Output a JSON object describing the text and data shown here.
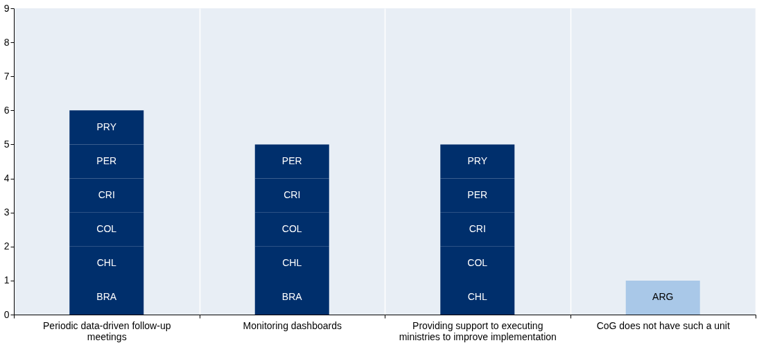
{
  "chart_data": {
    "type": "bar",
    "stacked": true,
    "categories": [
      "Periodic data-driven follow-up meetings",
      "Monitoring dashboards",
      "Providing support to executing ministries to improve implementation",
      "CoG does not have such a unit"
    ],
    "series": [
      {
        "values": [
          1,
          1,
          1,
          1
        ],
        "colors": [
          "#002f6c",
          "#002f6c",
          "#002f6c",
          "#a9c8e8"
        ],
        "value_labels": [
          "BRA",
          "BRA",
          "CHL",
          "ARG"
        ]
      },
      {
        "values": [
          1,
          1,
          1,
          null
        ],
        "color": "#002f6c",
        "value_labels": [
          "CHL",
          "CHL",
          "COL",
          null
        ]
      },
      {
        "values": [
          1,
          1,
          1,
          null
        ],
        "color": "#002f6c",
        "value_labels": [
          "COL",
          "COL",
          "CRI",
          null
        ]
      },
      {
        "values": [
          1,
          1,
          1,
          null
        ],
        "color": "#002f6c",
        "value_labels": [
          "CRI",
          "CRI",
          "PER",
          null
        ]
      },
      {
        "values": [
          1,
          1,
          1,
          null
        ],
        "color": "#002f6c",
        "value_labels": [
          "PER",
          "PER",
          "PRY",
          null
        ]
      },
      {
        "values": [
          1,
          null,
          null,
          null
        ],
        "color": "#002f6c",
        "value_labels": [
          "PRY",
          null,
          null,
          null
        ]
      }
    ],
    "ylim": [
      0,
      9
    ],
    "yticks": [
      0,
      1,
      2,
      3,
      4,
      5,
      6,
      7,
      8,
      9
    ],
    "grid": "x"
  }
}
